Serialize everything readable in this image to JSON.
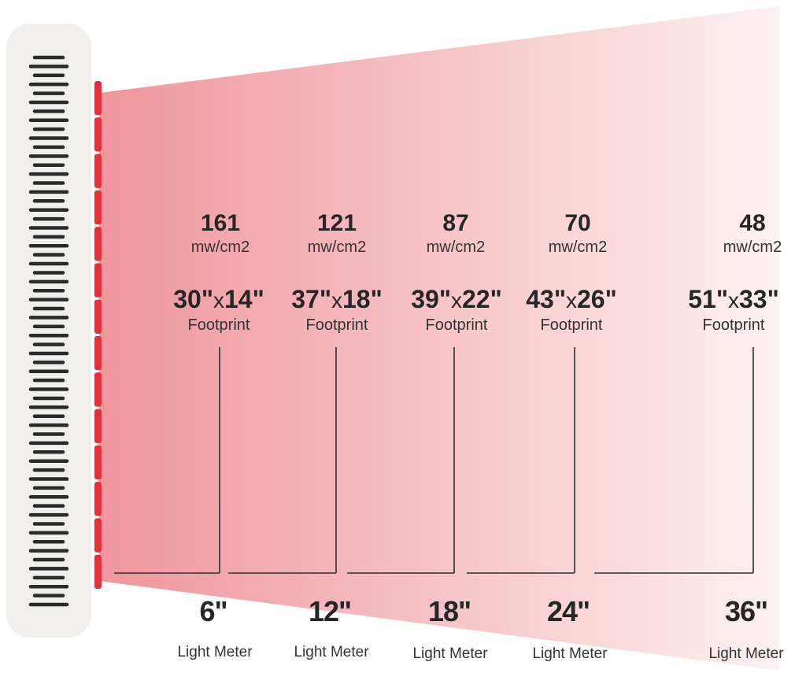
{
  "colors": {
    "beam_start": "#ef969c",
    "beam_end": "#fdf1f1",
    "led_red": "#e0323c",
    "panel_bg": "#f1efec",
    "stripe": "#2a2a2a",
    "guide_line": "#2e2e2e"
  },
  "panel": {
    "icon": "led-panel-icon"
  },
  "measurements": [
    {
      "irradiance": "161",
      "irradiance_unit": "mw/cm2",
      "fp_w": "30\"",
      "fp_x": "x",
      "fp_h": "14\"",
      "fp_label": "Footprint",
      "distance": "6\"",
      "meter_label": "Light Meter"
    },
    {
      "irradiance": "121",
      "irradiance_unit": "mw/cm2",
      "fp_w": "37\"",
      "fp_x": "x",
      "fp_h": "18\"",
      "fp_label": "Footprint",
      "distance": "12\"",
      "meter_label": "Light Meter"
    },
    {
      "irradiance": "87",
      "irradiance_unit": "mw/cm2",
      "fp_w": "39\"",
      "fp_x": "x",
      "fp_h": "22\"",
      "fp_label": "Footprint",
      "distance": "18\"",
      "meter_label": "Light Meter"
    },
    {
      "irradiance": "70",
      "irradiance_unit": "mw/cm2",
      "fp_w": "43\"",
      "fp_x": "x",
      "fp_h": "26\"",
      "fp_label": "Footprint",
      "distance": "24\"",
      "meter_label": "Light Meter"
    },
    {
      "irradiance": "48",
      "irradiance_unit": "mw/cm2",
      "fp_w": "51\"",
      "fp_x": "x",
      "fp_h": "33\"",
      "fp_label": "Footprint",
      "distance": "36\"",
      "meter_label": "Light Meter"
    }
  ]
}
